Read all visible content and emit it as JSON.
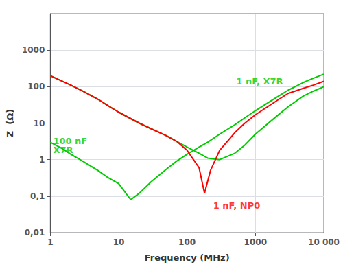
{
  "chart_data": {
    "type": "line",
    "log": true,
    "grid": true,
    "xlabel": "Frequency (MHz)",
    "ylabel": "Z  (Ω)",
    "xlim": [
      1,
      10000
    ],
    "ylim": [
      0.01,
      10000
    ],
    "xticks": [
      1,
      10,
      100,
      1000,
      {
        "value": 10000,
        "label": "10 000"
      }
    ],
    "yticks": [
      {
        "value": 0.01,
        "label": "0,01"
      },
      {
        "value": 0.1,
        "label": "0,1"
      },
      1,
      10,
      100,
      1000
    ],
    "series": [
      {
        "color": "#00cc00",
        "x": [
          1,
          1.5,
          2,
          3,
          5,
          7,
          10,
          15,
          20,
          30,
          50,
          70,
          100,
          150,
          200,
          300,
          500,
          700,
          1000,
          2000,
          3000,
          5000,
          7000,
          10000
        ],
        "values": [
          3.0,
          2.0,
          1.4,
          0.9,
          0.5,
          0.32,
          0.22,
          0.08,
          0.12,
          0.25,
          0.55,
          0.9,
          1.4,
          2.2,
          3.0,
          5.0,
          9.0,
          14,
          22,
          50,
          80,
          130,
          170,
          220
        ]
      },
      {
        "color": "#00cc00",
        "x": [
          1,
          2,
          3,
          5,
          7,
          10,
          20,
          30,
          50,
          70,
          100,
          150,
          200,
          300,
          500,
          700,
          1000,
          2000,
          3000,
          5000,
          7000,
          10000
        ],
        "values": [
          200,
          110,
          75,
          45,
          30,
          20,
          10,
          7,
          4.5,
          3.2,
          2.2,
          1.5,
          1.1,
          1.0,
          1.5,
          2.5,
          5,
          15,
          28,
          55,
          75,
          100
        ]
      },
      {
        "color": "#ff0000",
        "x": [
          1,
          2,
          3,
          5,
          7,
          10,
          20,
          30,
          50,
          70,
          100,
          150,
          180,
          220,
          300,
          500,
          700,
          1000,
          2000,
          3000,
          5000,
          7000,
          10000
        ],
        "values": [
          200,
          110,
          75,
          45,
          30,
          20,
          10,
          7,
          4.5,
          3.2,
          1.8,
          0.6,
          0.12,
          0.5,
          1.8,
          5.5,
          10,
          17,
          40,
          65,
          90,
          110,
          140
        ]
      }
    ],
    "annotations": [
      {
        "text": "100 nF\nX7R",
        "x": 1.05,
        "y": 2.5,
        "color": "#00cc00"
      },
      {
        "text": "1 nF, X7R",
        "x": 500,
        "y": 140,
        "color": "#00cc00"
      },
      {
        "text": "1 nF, NP0",
        "x": 230,
        "y": 0.055,
        "color": "#ff0000"
      }
    ]
  }
}
